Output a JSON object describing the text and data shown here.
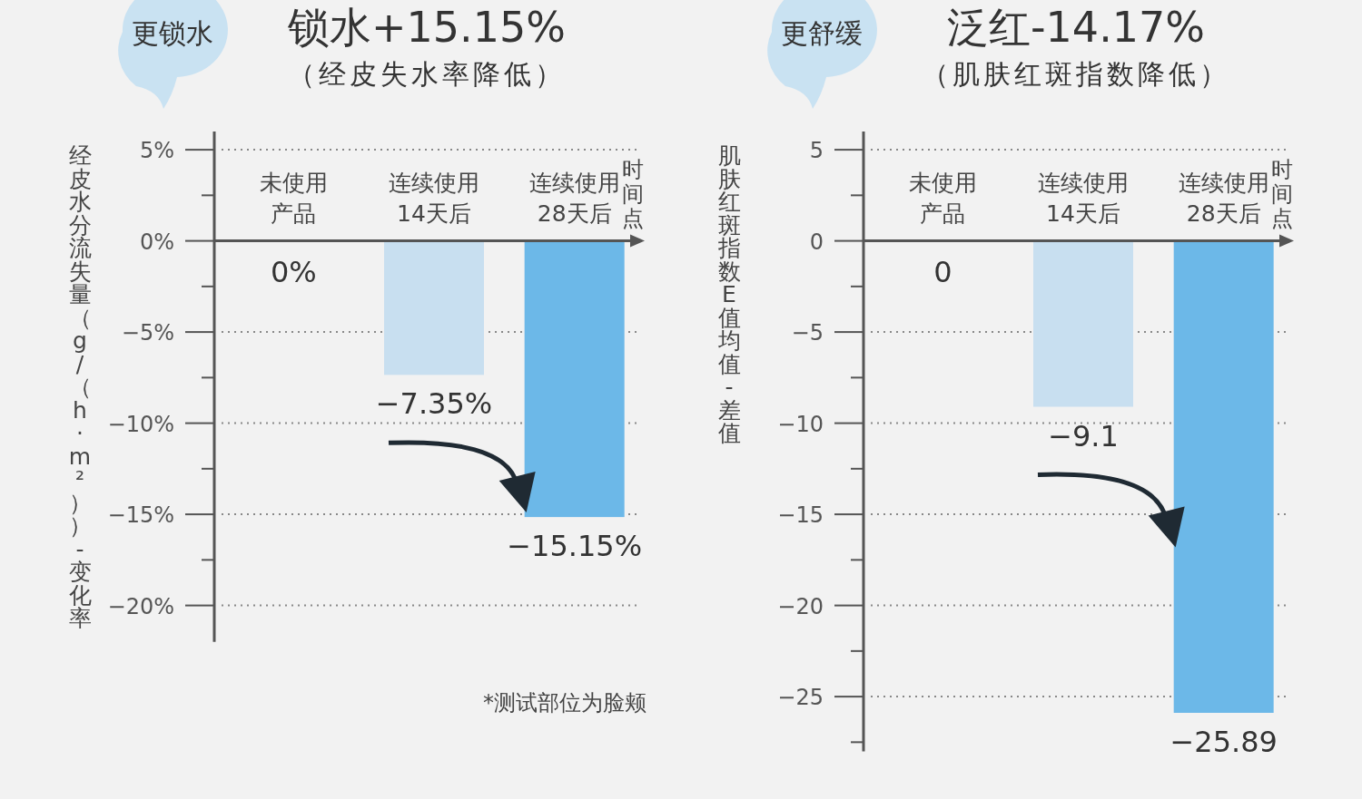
{
  "chart_data": [
    {
      "type": "bar",
      "title": "锁水+15.15%",
      "subtitle": "（经皮失水率降低）",
      "ylabel": "经皮水分流失量（g/（h·m²））-变化率",
      "xlabel": "时间点",
      "annotations": [
        "更锁水",
        "*测试部位为脸颊"
      ],
      "categories": [
        "未使用产品",
        "连续使用14天后",
        "连续使用28天后"
      ],
      "values": [
        0,
        -7.35,
        -15.15
      ],
      "colors": [
        "#c8dff0",
        "#c8dff0",
        "#6cb8e8"
      ],
      "value_labels": [
        "0%",
        "−7.35%",
        "−15.15%"
      ],
      "ylim": [
        -22,
        6
      ],
      "yticks": [
        {
          "value": 5,
          "label": "5%"
        },
        {
          "value": 2.5,
          "label": null
        },
        {
          "value": 0,
          "label": "0%"
        },
        {
          "value": -2.5,
          "label": null
        },
        {
          "value": -5,
          "label": "−5%"
        },
        {
          "value": -7.5,
          "label": null
        },
        {
          "value": -10,
          "label": "−10%"
        },
        {
          "value": -12.5,
          "label": null
        },
        {
          "value": -15,
          "label": "−15%"
        },
        {
          "value": -17.5,
          "label": null
        },
        {
          "value": -20,
          "label": "−20%"
        }
      ],
      "grid": "y"
    },
    {
      "type": "bar",
      "title": "泛红-14.17%",
      "subtitle": "（肌肤红斑指数降低）",
      "ylabel": "肌肤红斑指数E值均值-差值",
      "xlabel": "时间点",
      "annotations": [
        "更舒缓"
      ],
      "categories": [
        "未使用产品",
        "连续使用14天后",
        "连续使用28天后"
      ],
      "values": [
        0,
        -9.1,
        -25.89
      ],
      "colors": [
        "#c8dff0",
        "#c8dff0",
        "#6cb8e8"
      ],
      "value_labels": [
        "0",
        "−9.1",
        "−25.89"
      ],
      "ylim": [
        -28,
        6
      ],
      "yticks": [
        {
          "value": 5,
          "label": "5"
        },
        {
          "value": 2.5,
          "label": null
        },
        {
          "value": 0,
          "label": "0"
        },
        {
          "value": -2.5,
          "label": null
        },
        {
          "value": -5,
          "label": "−5"
        },
        {
          "value": -7.5,
          "label": null
        },
        {
          "value": -10,
          "label": "−10"
        },
        {
          "value": -12.5,
          "label": null
        },
        {
          "value": -15,
          "label": "−15"
        },
        {
          "value": -17.5,
          "label": null
        },
        {
          "value": -20,
          "label": "−20"
        },
        {
          "value": -22.5,
          "label": null
        },
        {
          "value": -25,
          "label": "−25"
        },
        {
          "value": -27.5,
          "label": null
        }
      ],
      "grid": "y"
    }
  ]
}
